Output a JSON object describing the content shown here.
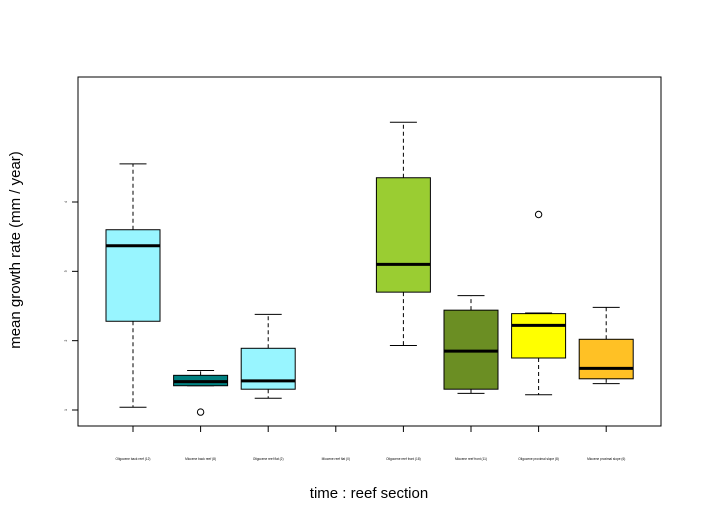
{
  "chart_data": {
    "type": "box",
    "title": "",
    "xlabel": "time : reef section",
    "ylabel": "mean growth rate (mm / year)",
    "ylim": [
      0.8,
      5.0
    ],
    "yticks": [
      1,
      2,
      3,
      4
    ],
    "categories": [
      "Oligocene back reef (12)",
      "Miocene back reef (8)",
      "Oligocene reef flat (2)",
      "Miocene reef flat (0)",
      "Oligocene reef front (18)",
      "Miocene reef front (11)",
      "Oligocene proximal slope (8)",
      "Miocene proximal slope (6)"
    ],
    "series": [
      {
        "category": "Oligocene back reef (12)",
        "color": "#98F5FF",
        "min": 1.04,
        "q1": 2.28,
        "median": 3.37,
        "q3": 3.6,
        "max": 4.55,
        "outliers": []
      },
      {
        "category": "Miocene back reef (8)",
        "color": "#008080",
        "min": 1.35,
        "q1": 1.35,
        "median": 1.41,
        "q3": 1.5,
        "max": 1.57,
        "outliers": [
          0.97
        ]
      },
      {
        "category": "Oligocene reef flat (2)",
        "color": "#98F5FF",
        "min": 1.17,
        "q1": 1.3,
        "median": 1.42,
        "q3": 1.89,
        "max": 2.38,
        "outliers": []
      },
      {
        "category": "Miocene reef flat (0)",
        "color": "#98F5FF",
        "empty": true
      },
      {
        "category": "Oligocene reef front (18)",
        "color": "#9ACD32",
        "min": 1.93,
        "q1": 2.7,
        "median": 3.1,
        "q3": 4.35,
        "max": 5.15,
        "outliers": []
      },
      {
        "category": "Miocene reef front (11)",
        "color": "#6B8E23",
        "min": 1.24,
        "q1": 1.3,
        "median": 1.85,
        "q3": 2.44,
        "max": 2.65,
        "outliers": []
      },
      {
        "category": "Oligocene proximal slope (8)",
        "color": "#FFFF00",
        "min": 1.22,
        "q1": 1.75,
        "median": 2.22,
        "q3": 2.39,
        "max": 2.4,
        "outliers": [
          3.82
        ]
      },
      {
        "category": "Miocene proximal slope (6)",
        "color": "#FFC125",
        "min": 1.38,
        "q1": 1.45,
        "median": 1.6,
        "q3": 2.02,
        "max": 2.48,
        "outliers": []
      }
    ]
  }
}
